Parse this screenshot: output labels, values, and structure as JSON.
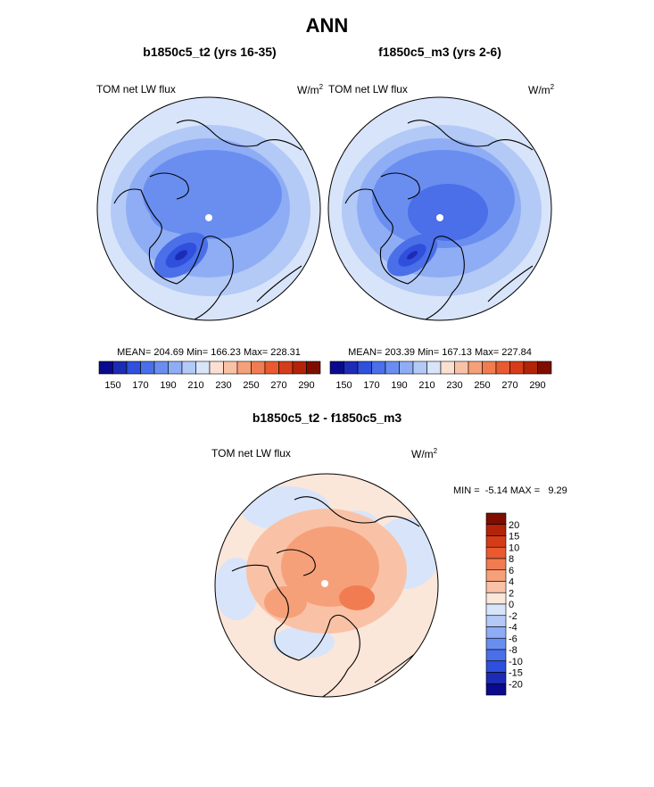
{
  "page": {
    "title": "ANN"
  },
  "chart_data": [
    {
      "type": "heatmap",
      "title": "b1850c5_t2 (yrs 16-35)",
      "left_label": "TOM net LW flux",
      "units_base": "W/m",
      "units_exp": "2",
      "stats": "MEAN= 204.69  Min= 166.23  Max= 228.31",
      "mean": 204.69,
      "min": 166.23,
      "max": 228.31,
      "colorbar": {
        "levels": [
          "150",
          "170",
          "190",
          "210",
          "230",
          "250",
          "270",
          "290"
        ],
        "colors": [
          "#0a0a8c",
          "#1c2cb4",
          "#2f4fdc",
          "#4a6fe8",
          "#6a8ef0",
          "#8fadf4",
          "#b3c9f6",
          "#d8e4fa",
          "#fbe0d2",
          "#f9c2a6",
          "#f6a079",
          "#f27c52",
          "#ea5a2f",
          "#d53c18",
          "#b32308",
          "#7e0d00"
        ]
      }
    },
    {
      "type": "heatmap",
      "title": "f1850c5_m3 (yrs 2-6)",
      "left_label": "TOM net LW flux",
      "units_base": "W/m",
      "units_exp": "2",
      "stats": "MEAN= 203.39  Min= 167.13  Max= 227.84",
      "mean": 203.39,
      "min": 167.13,
      "max": 227.84,
      "colorbar": {
        "levels": [
          "150",
          "170",
          "190",
          "210",
          "230",
          "250",
          "270",
          "290"
        ],
        "colors": [
          "#0a0a8c",
          "#1c2cb4",
          "#2f4fdc",
          "#4a6fe8",
          "#6a8ef0",
          "#8fadf4",
          "#b3c9f6",
          "#d8e4fa",
          "#fbe0d2",
          "#f9c2a6",
          "#f6a079",
          "#f27c52",
          "#ea5a2f",
          "#d53c18",
          "#b32308",
          "#7e0d00"
        ]
      }
    },
    {
      "type": "heatmap",
      "title": "b1850c5_t2 - f1850c5_m3",
      "left_label": "TOM net LW flux",
      "units_base": "W/m",
      "units_exp": "2",
      "stats": "MIN =  -5.14 MAX =   9.29",
      "min": -5.14,
      "max": 9.29,
      "colorbar": {
        "levels": [
          "20",
          "15",
          "10",
          "8",
          "6",
          "4",
          "2",
          "0",
          "-2",
          "-4",
          "-6",
          "-8",
          "-10",
          "-15",
          "-20"
        ],
        "colors": [
          "#7e0d00",
          "#b32308",
          "#d53c18",
          "#ea5a2f",
          "#f27c52",
          "#f6a079",
          "#f9c2a6",
          "#fbe6da",
          "#d8e4fa",
          "#b3c9f6",
          "#8fadf4",
          "#6a8ef0",
          "#4a6fe8",
          "#2f4fdc",
          "#1c2cb4",
          "#0a0a8c"
        ]
      }
    }
  ]
}
